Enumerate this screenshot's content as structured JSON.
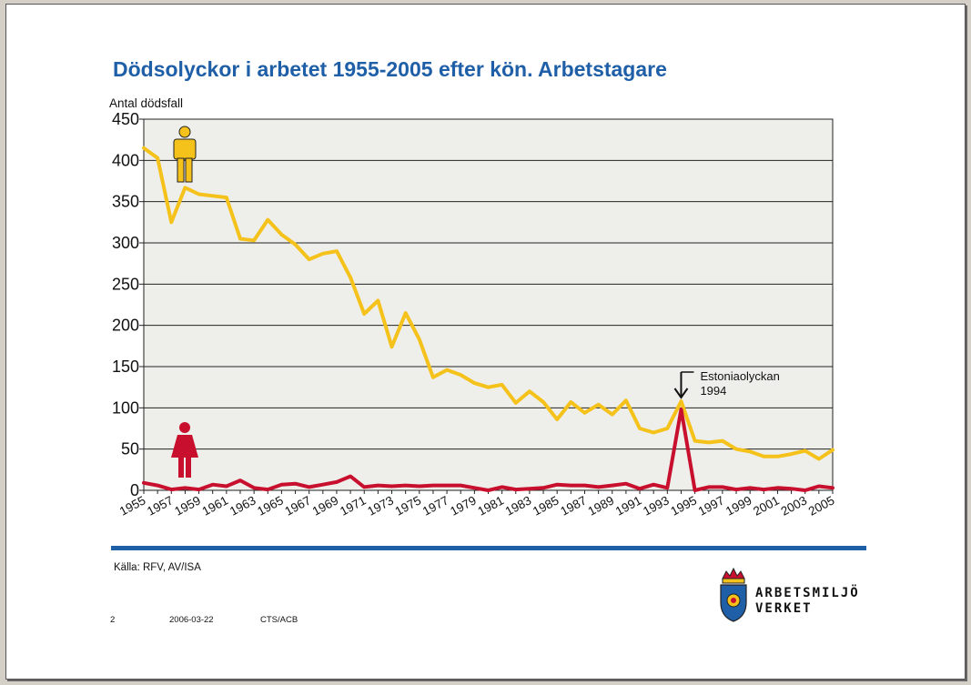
{
  "title": "Dödsolyckor i arbetet 1955-2005 efter kön. Arbetstagare",
  "source": "Källa: RFV, AV/ISA",
  "footer": {
    "page": "2",
    "date": "2006-03-22",
    "code": "CTS/ACB"
  },
  "logo": {
    "line1": "ARBETSMILJÖ",
    "line2": "VERKET"
  },
  "colors": {
    "men": "#f5c21b",
    "women": "#c8102e",
    "accent": "#1f5fa8",
    "plot_bg": "#eeeeea"
  },
  "chart_data": {
    "type": "line",
    "ylabel": "Antal dödsfall",
    "xlabel": "",
    "ylim": [
      0,
      450
    ],
    "yticks": [
      0,
      50,
      100,
      150,
      200,
      250,
      300,
      350,
      400,
      450
    ],
    "grid": true,
    "x": [
      1955,
      1956,
      1957,
      1958,
      1959,
      1960,
      1961,
      1962,
      1963,
      1964,
      1965,
      1966,
      1967,
      1968,
      1969,
      1970,
      1971,
      1972,
      1973,
      1974,
      1975,
      1976,
      1977,
      1978,
      1979,
      1980,
      1981,
      1982,
      1983,
      1984,
      1985,
      1986,
      1987,
      1988,
      1989,
      1990,
      1991,
      1992,
      1993,
      1994,
      1995,
      1996,
      1997,
      1998,
      1999,
      2000,
      2001,
      2002,
      2003,
      2004,
      2005
    ],
    "xtick_labels": [
      "1955",
      "1957",
      "1959",
      "1961",
      "1963",
      "1965",
      "1967",
      "1969",
      "1971",
      "1973",
      "1975",
      "1977",
      "1979",
      "1981",
      "1983",
      "1985",
      "1987",
      "1989",
      "1991",
      "1993",
      "1995",
      "1997",
      "1999",
      "2001",
      "2003",
      "2005"
    ],
    "series": [
      {
        "key": "men",
        "icon": "man-icon",
        "values": [
          415,
          403,
          325,
          367,
          359,
          357,
          355,
          305,
          303,
          328,
          310,
          298,
          280,
          287,
          290,
          258,
          214,
          230,
          174,
          215,
          183,
          137,
          146,
          140,
          130,
          125,
          128,
          106,
          120,
          107,
          86,
          107,
          94,
          104,
          92,
          109,
          75,
          70,
          75,
          108,
          60,
          58,
          60,
          50,
          47,
          41,
          41,
          44,
          48,
          38,
          49
        ]
      },
      {
        "key": "women",
        "icon": "woman-icon",
        "values": [
          9,
          6,
          1,
          3,
          1,
          7,
          5,
          12,
          3,
          1,
          7,
          8,
          4,
          7,
          10,
          17,
          4,
          6,
          5,
          6,
          5,
          6,
          6,
          6,
          3,
          0,
          4,
          1,
          2,
          3,
          7,
          6,
          6,
          4,
          6,
          8,
          2,
          7,
          3,
          98,
          0,
          4,
          4,
          1,
          3,
          1,
          3,
          2,
          0,
          5,
          3
        ]
      }
    ],
    "annotation": {
      "x": 1994,
      "text_line1": "Estoniaolyckan",
      "text_line2": "1994"
    }
  }
}
